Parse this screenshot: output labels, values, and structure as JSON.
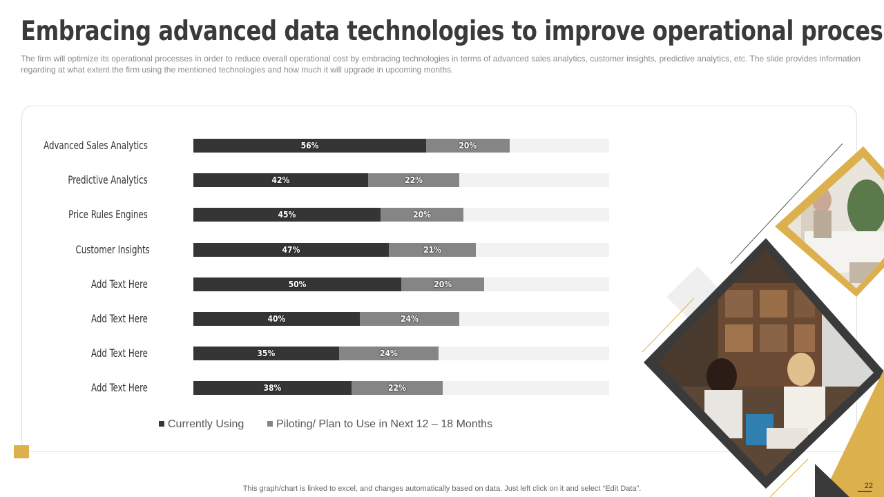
{
  "slide": {
    "title": "Embracing advanced data technologies to improve operational processes",
    "subtitle": "The firm will optimize its operational processes in order to reduce overall operational cost by embracing technologies in terms of advanced sales analytics, customer insights, predictive analytics, etc. The slide provides information regarding at what extent the firm using the mentioned technologies and how much it will upgrade in upcoming months.",
    "footer_note": "This graph/chart is linked to excel, and changes automatically based on data. Just left click on it and select “Edit Data”.",
    "page_number": "22"
  },
  "colors": {
    "currently_using": "#353535",
    "piloting": "#858585",
    "track": "#f2f2f2",
    "accent_gold": "#dcb04c",
    "frame_dark": "#3a3a3a"
  },
  "images": {
    "top_photo": "office-meeting-photo",
    "main_photo": "two-women-working-photo"
  },
  "chart_data": {
    "type": "bar",
    "orientation": "horizontal",
    "stacked": true,
    "categories": [
      "Advanced Sales Analytics",
      "Predictive Analytics",
      "Price Rules Engines",
      "Customer Insights",
      "Add Text Here",
      "Add Text Here",
      "Add Text Here",
      "Add Text Here"
    ],
    "series": [
      {
        "name": "Currently Using",
        "values": [
          56,
          42,
          45,
          47,
          50,
          40,
          35,
          38
        ],
        "labels": [
          "56%",
          "42%",
          "45%",
          "47%",
          "50%",
          "40%",
          "35%",
          "38%"
        ]
      },
      {
        "name": "Piloting/ Plan to Use in Next 12 – 18 Months",
        "values": [
          20,
          22,
          20,
          21,
          20,
          24,
          24,
          22
        ],
        "labels": [
          "20%",
          "22%",
          "20%",
          "21%",
          "20%",
          "24%",
          "24%",
          "22%"
        ]
      }
    ],
    "xlim": [
      0,
      100
    ],
    "unit": "%",
    "legend_position": "bottom",
    "grid": false
  }
}
